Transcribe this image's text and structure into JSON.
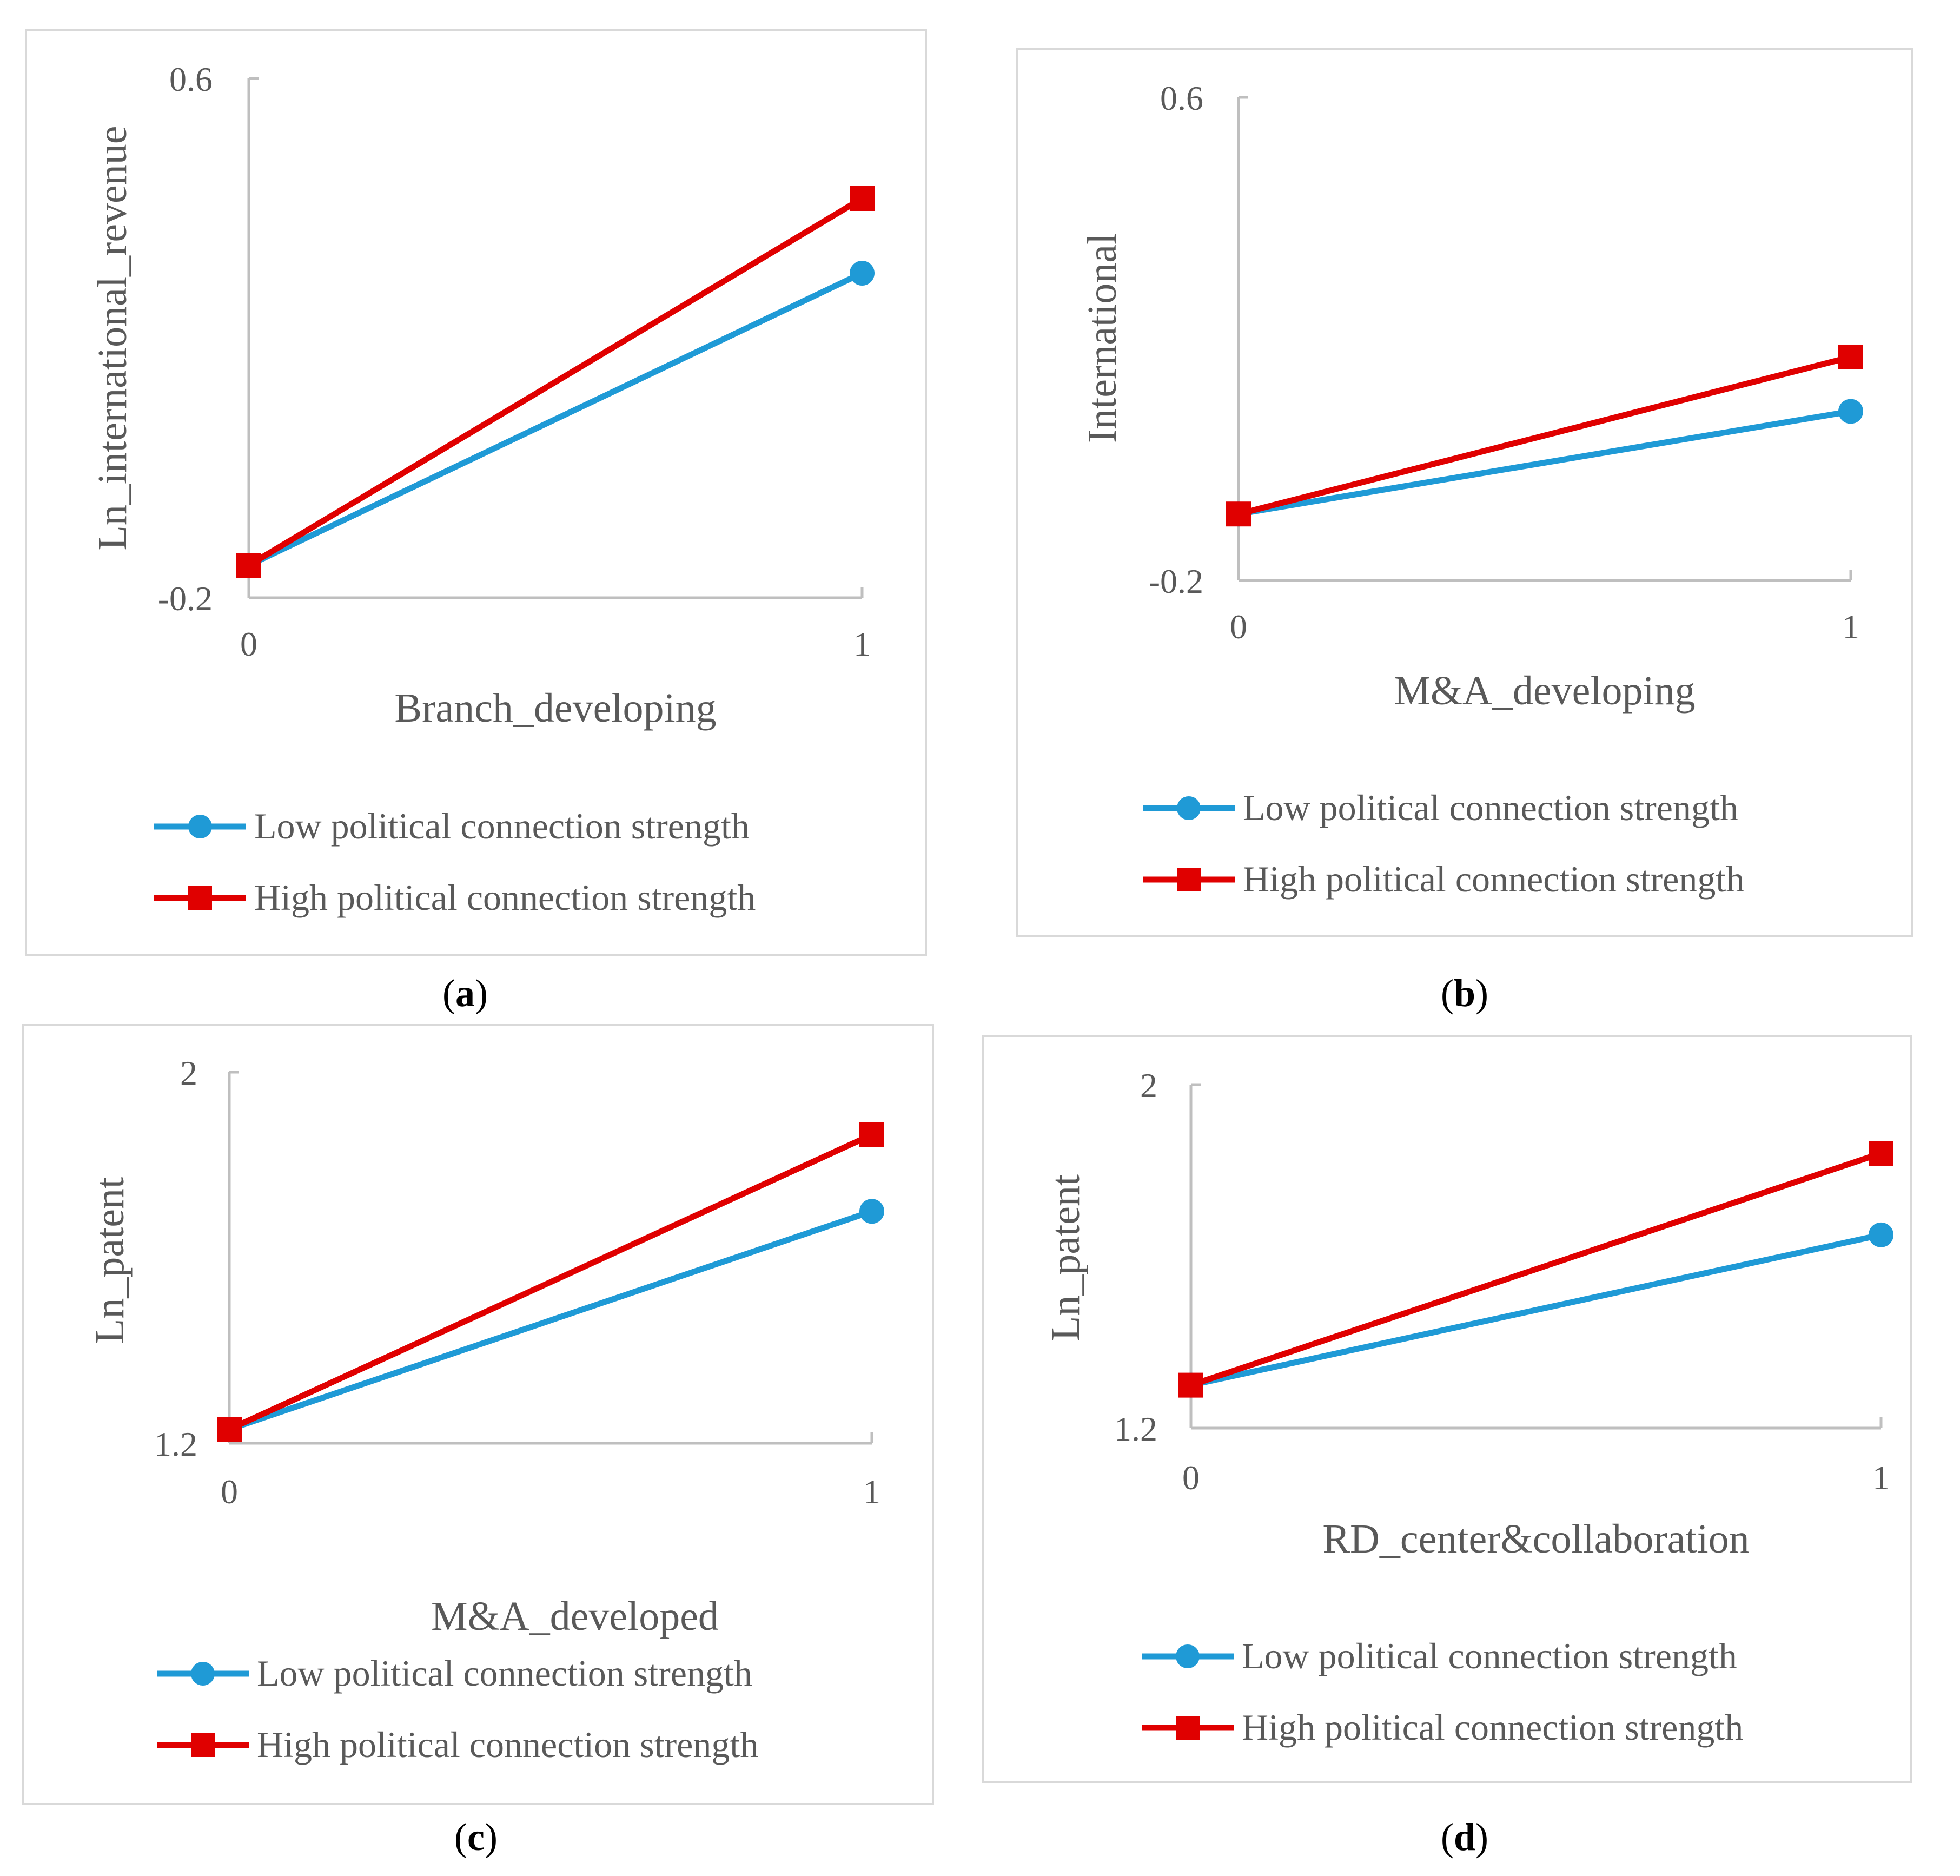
{
  "colors": {
    "low": "#1F9AD6",
    "high": "#E00000",
    "axis": "#BFBFBF",
    "text": "#595959",
    "frame": "#D9D9D9"
  },
  "legend": {
    "low_label": "Low political connection strength",
    "high_label": "High political connection strength"
  },
  "chart_data": [
    {
      "type": "line",
      "panel_label": "a",
      "xlabel": "Branch_developing",
      "ylabel": "Ln_international_revenue",
      "categories": [
        "0",
        "1"
      ],
      "ylim": [
        -0.2,
        0.6
      ],
      "ytick_labels": [
        "0.6",
        "-0.2"
      ],
      "series": [
        {
          "name": "Low political connection strength",
          "key": "low",
          "marker": "circle",
          "values": [
            -0.15,
            0.3
          ]
        },
        {
          "name": "High political connection strength",
          "key": "high",
          "marker": "square",
          "values": [
            -0.15,
            0.415
          ]
        }
      ]
    },
    {
      "type": "line",
      "panel_label": "b",
      "xlabel": "M&A_developing",
      "ylabel": "International",
      "categories": [
        "0",
        "1"
      ],
      "ylim": [
        -0.2,
        0.6
      ],
      "ytick_labels": [
        "0.6",
        "-0.2"
      ],
      "series": [
        {
          "name": "Low political connection strength",
          "key": "low",
          "marker": "circle",
          "values": [
            -0.09,
            0.08
          ]
        },
        {
          "name": "High political connection strength",
          "key": "high",
          "marker": "square",
          "values": [
            -0.09,
            0.17
          ]
        }
      ]
    },
    {
      "type": "line",
      "panel_label": "c",
      "xlabel": "M&A_developed",
      "ylabel": "Ln_patent",
      "categories": [
        "0",
        "1"
      ],
      "ylim": [
        1.2,
        2.0
      ],
      "ytick_labels": [
        "2",
        "1.2"
      ],
      "series": [
        {
          "name": "Low political connection strength",
          "key": "low",
          "marker": "circle",
          "values": [
            1.23,
            1.7
          ]
        },
        {
          "name": "High political connection strength",
          "key": "high",
          "marker": "square",
          "values": [
            1.23,
            1.865
          ]
        }
      ]
    },
    {
      "type": "line",
      "panel_label": "d",
      "xlabel": "RD_center&collaboration",
      "ylabel": "Ln_patent",
      "categories": [
        "0",
        "1"
      ],
      "ylim": [
        1.2,
        2.0
      ],
      "ytick_labels": [
        "2",
        "1.2"
      ],
      "series": [
        {
          "name": "Low political connection strength",
          "key": "low",
          "marker": "circle",
          "values": [
            1.3,
            1.65
          ]
        },
        {
          "name": "High political connection strength",
          "key": "high",
          "marker": "square",
          "values": [
            1.3,
            1.84
          ]
        }
      ]
    }
  ]
}
